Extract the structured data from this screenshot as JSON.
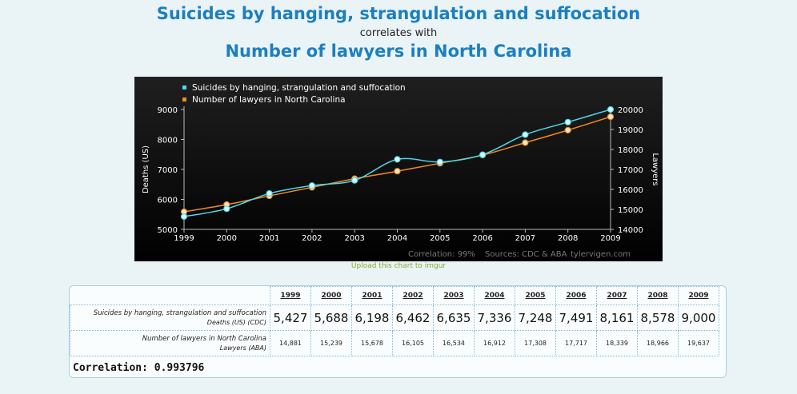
{
  "header": {
    "title1": "Suicides by hanging, strangulation and suffocation",
    "connector": "correlates with",
    "title2": "Number of lawyers in North Carolina"
  },
  "chart_data": {
    "type": "line",
    "x": [
      1999,
      2000,
      2001,
      2002,
      2003,
      2004,
      2005,
      2006,
      2007,
      2008,
      2009
    ],
    "series": [
      {
        "name": "Suicides by hanging, strangulation and suffocation",
        "axis": "left",
        "color": "#4dd8ec",
        "values": [
          5427,
          5688,
          6198,
          6462,
          6635,
          7336,
          7248,
          7491,
          8161,
          8578,
          9000
        ]
      },
      {
        "name": "Number of lawyers in North Carolina",
        "axis": "right",
        "color": "#f08a24",
        "values": [
          14881,
          15239,
          15678,
          16105,
          16534,
          16912,
          17308,
          17717,
          18339,
          18966,
          19637
        ]
      }
    ],
    "ylabel": "Deaths (US)",
    "y2label": "Lawyers",
    "ylim": [
      5000,
      9000
    ],
    "y2lim": [
      14000,
      20000
    ],
    "yticks": [
      5000,
      6000,
      7000,
      8000,
      9000
    ],
    "y2ticks": [
      14000,
      15000,
      16000,
      17000,
      18000,
      19000,
      20000
    ],
    "legend_position": "top-left",
    "grid": false,
    "footer_correlation": "Correlation: 99%",
    "footer_sources": "Sources: CDC & ABA",
    "footer_site": "tylervigen.com"
  },
  "upload_link": "Upload this chart to imgur",
  "table": {
    "years": [
      "1999",
      "2000",
      "2001",
      "2002",
      "2003",
      "2004",
      "2005",
      "2006",
      "2007",
      "2008",
      "2009"
    ],
    "rows": [
      {
        "label": "Suicides by hanging, strangulation and suffocation",
        "sublabel": "Deaths (US) (CDC)",
        "values": [
          "5,427",
          "5,688",
          "6,198",
          "6,462",
          "6,635",
          "7,336",
          "7,248",
          "7,491",
          "8,161",
          "8,578",
          "9,000"
        ]
      },
      {
        "label": "Number of lawyers in North Carolina",
        "sublabel": "Lawyers (ABA)",
        "values": [
          "14,881",
          "15,239",
          "15,678",
          "16,105",
          "16,534",
          "16,912",
          "17,308",
          "17,717",
          "18,339",
          "18,966",
          "19,637"
        ]
      }
    ],
    "correlation": "Correlation: 0.993796"
  }
}
